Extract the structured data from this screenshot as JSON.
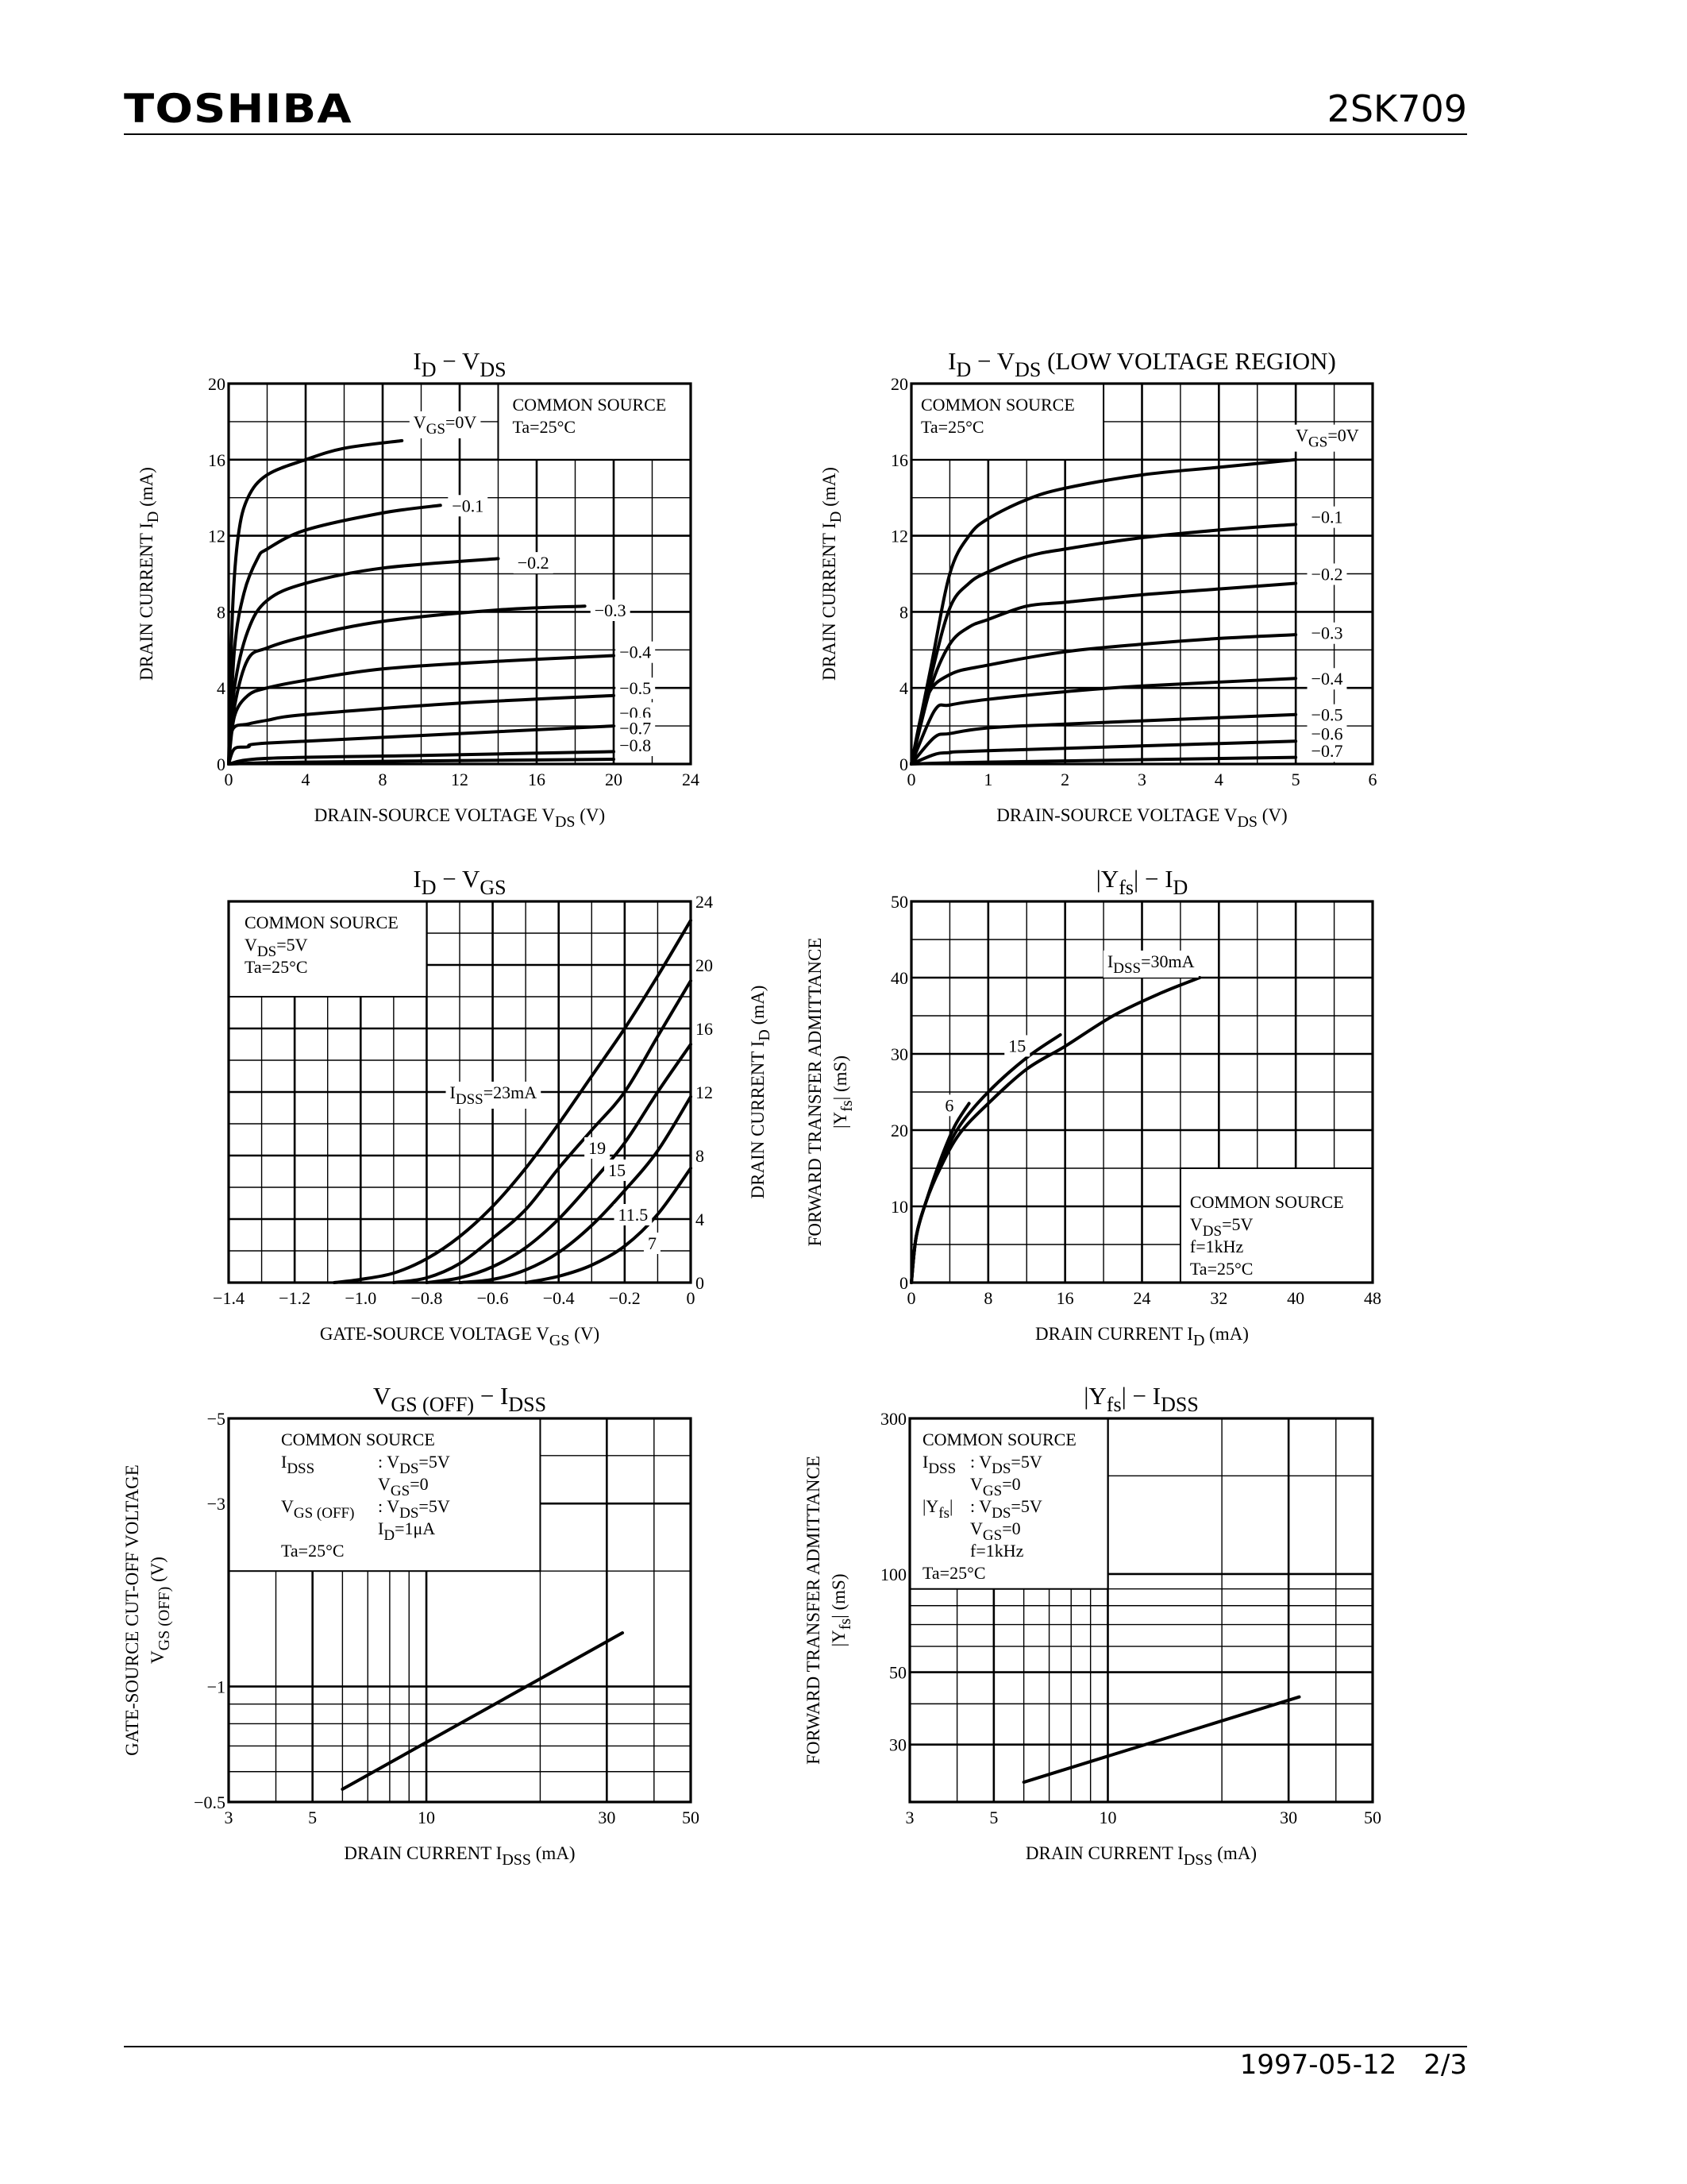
{
  "header": {
    "brand": "TOSHIBA",
    "part_number": "2SK709"
  },
  "footer": {
    "date": "1997-05-12",
    "page": "2/3"
  },
  "chart_data": [
    {
      "type": "line",
      "title": "I_{D}  −  V_{DS}",
      "xlabel": "DRAIN-SOURCE VOLTAGE   V_{DS}   (V)",
      "ylabel": [
        "DRAIN CURRENT   I_{D}   (mA)"
      ],
      "xscale": "linear",
      "yscale": "linear",
      "xlim": [
        0,
        24
      ],
      "ylim": [
        0,
        20
      ],
      "xticks": [
        "0",
        "4",
        "8",
        "12",
        "16",
        "20",
        "24"
      ],
      "yticks": [
        "0",
        "4",
        "8",
        "12",
        "16",
        "20"
      ],
      "grid": true,
      "conditions": [
        [
          "COMMON SOURCE"
        ],
        [
          "Ta=25°C"
        ]
      ],
      "series": [
        {
          "name": "V_{GS}=0V",
          "points": [
            [
              0,
              0
            ],
            [
              0.2,
              8
            ],
            [
              0.5,
              12
            ],
            [
              1,
              14
            ],
            [
              2,
              15.2
            ],
            [
              4,
              16
            ],
            [
              6,
              16.6
            ],
            [
              9,
              17
            ]
          ]
        },
        {
          "name": "−0.1",
          "points": [
            [
              0,
              0
            ],
            [
              0.3,
              6
            ],
            [
              0.8,
              9
            ],
            [
              1.5,
              10.8
            ],
            [
              2,
              11.3
            ],
            [
              4,
              12.3
            ],
            [
              8,
              13.2
            ],
            [
              11,
              13.6
            ]
          ]
        },
        {
          "name": "−0.2",
          "points": [
            [
              0,
              0
            ],
            [
              0.3,
              4
            ],
            [
              1,
              7
            ],
            [
              2,
              8.6
            ],
            [
              4,
              9.5
            ],
            [
              8,
              10.3
            ],
            [
              14,
              10.8
            ]
          ]
        },
        {
          "name": "−0.3",
          "points": [
            [
              0,
              0
            ],
            [
              0.3,
              3
            ],
            [
              1,
              5.5
            ],
            [
              2,
              6.1
            ],
            [
              4,
              6.7
            ],
            [
              8,
              7.5
            ],
            [
              14,
              8.1
            ],
            [
              18.5,
              8.3
            ]
          ]
        },
        {
          "name": "−0.4",
          "points": [
            [
              0,
              0
            ],
            [
              0.3,
              2.5
            ],
            [
              1,
              3.6
            ],
            [
              2,
              4
            ],
            [
              4,
              4.4
            ],
            [
              8,
              5
            ],
            [
              14,
              5.4
            ],
            [
              20,
              5.7
            ]
          ]
        },
        {
          "name": "−0.5",
          "points": [
            [
              0,
              0
            ],
            [
              0.2,
              1.8
            ],
            [
              1,
              2.1
            ],
            [
              2,
              2.3
            ],
            [
              4,
              2.6
            ],
            [
              12,
              3.2
            ],
            [
              20,
              3.6
            ]
          ]
        },
        {
          "name": "−0.6",
          "points": [
            [
              0,
              0
            ],
            [
              0.3,
              0.8
            ],
            [
              1,
              0.9
            ],
            [
              2,
              1.1
            ],
            [
              10,
              1.5
            ],
            [
              20,
              2
            ]
          ]
        },
        {
          "name": "−0.7",
          "points": [
            [
              0,
              0
            ],
            [
              2,
              0.3
            ],
            [
              10,
              0.45
            ],
            [
              20,
              0.65
            ]
          ]
        },
        {
          "name": "−0.8",
          "points": [
            [
              0,
              0
            ],
            [
              4,
              0.1
            ],
            [
              20,
              0.25
            ]
          ]
        }
      ]
    },
    {
      "type": "line",
      "title": "I_{D}  −  V_{DS}  (LOW VOLTAGE REGION)",
      "xlabel": "DRAIN-SOURCE VOLTAGE   V_{DS}   (V)",
      "ylabel": [
        "DRAIN CURRENT   I_{D}   (mA)"
      ],
      "xscale": "linear",
      "yscale": "linear",
      "xlim": [
        0,
        6
      ],
      "ylim": [
        0,
        20
      ],
      "xticks": [
        "0",
        "1",
        "2",
        "3",
        "4",
        "5",
        "6"
      ],
      "yticks": [
        "0",
        "4",
        "8",
        "12",
        "16",
        "20"
      ],
      "grid": true,
      "conditions": [
        [
          "COMMON SOURCE"
        ],
        [
          "Ta=25°C"
        ]
      ],
      "series": [
        {
          "name": "V_{GS}=0V",
          "points": [
            [
              0,
              0
            ],
            [
              0.25,
              5
            ],
            [
              0.5,
              10
            ],
            [
              0.75,
              12
            ],
            [
              1,
              12.9
            ],
            [
              1.5,
              13.9
            ],
            [
              2,
              14.5
            ],
            [
              3,
              15.2
            ],
            [
              4,
              15.6
            ],
            [
              5,
              16
            ]
          ]
        },
        {
          "name": "−0.1",
          "points": [
            [
              0,
              0
            ],
            [
              0.25,
              4.5
            ],
            [
              0.5,
              8.2
            ],
            [
              0.75,
              9.5
            ],
            [
              1,
              10.1
            ],
            [
              1.5,
              10.9
            ],
            [
              2,
              11.3
            ],
            [
              3,
              11.9
            ],
            [
              4,
              12.3
            ],
            [
              5,
              12.6
            ]
          ]
        },
        {
          "name": "−0.2",
          "points": [
            [
              0,
              0
            ],
            [
              0.25,
              4
            ],
            [
              0.5,
              6.3
            ],
            [
              0.75,
              7.2
            ],
            [
              1,
              7.6
            ],
            [
              1.5,
              8.3
            ],
            [
              2,
              8.5
            ],
            [
              3,
              8.9
            ],
            [
              4,
              9.2
            ],
            [
              5,
              9.5
            ]
          ]
        },
        {
          "name": "−0.3",
          "points": [
            [
              0,
              0
            ],
            [
              0.2,
              3.5
            ],
            [
              0.5,
              4.7
            ],
            [
              1,
              5.2
            ],
            [
              2,
              5.9
            ],
            [
              3,
              6.3
            ],
            [
              4,
              6.6
            ],
            [
              5,
              6.8
            ]
          ]
        },
        {
          "name": "−0.4",
          "points": [
            [
              0,
              0
            ],
            [
              0.3,
              2.8
            ],
            [
              0.5,
              3.1
            ],
            [
              1,
              3.4
            ],
            [
              2,
              3.8
            ],
            [
              3,
              4.1
            ],
            [
              5,
              4.5
            ]
          ]
        },
        {
          "name": "−0.5",
          "points": [
            [
              0,
              0
            ],
            [
              0.3,
              1.4
            ],
            [
              0.5,
              1.6
            ],
            [
              1,
              1.9
            ],
            [
              2,
              2.1
            ],
            [
              5,
              2.6
            ]
          ]
        },
        {
          "name": "−0.6",
          "points": [
            [
              0,
              0
            ],
            [
              0.3,
              0.5
            ],
            [
              0.5,
              0.6
            ],
            [
              1,
              0.7
            ],
            [
              5,
              1.2
            ]
          ]
        },
        {
          "name": "−0.7",
          "points": [
            [
              0,
              0
            ],
            [
              1,
              0.1
            ],
            [
              5,
              0.35
            ]
          ]
        }
      ]
    },
    {
      "type": "line",
      "title": "I_{D}  −  V_{GS}",
      "xlabel": "GATE-SOURCE VOLTAGE   V_{GS}   (V)",
      "ylabel": [
        "DRAIN CURRENT   I_{D}   (mA)"
      ],
      "xscale": "linear",
      "yscale": "linear",
      "xlim": [
        -1.4,
        0
      ],
      "ylim": [
        0,
        24
      ],
      "xticks": [
        "−1.4",
        "−1.2",
        "−1.0",
        "−0.8",
        "−0.6",
        "−0.4",
        "−0.2",
        "0"
      ],
      "yticks": [
        "0",
        "4",
        "8",
        "12",
        "16",
        "20",
        "24"
      ],
      "grid": true,
      "conditions": [
        [
          "COMMON SOURCE"
        ],
        [
          "V_{DS}=5V"
        ],
        [
          "Ta=25°C"
        ]
      ],
      "series": [
        {
          "name": "I_{DSS}=23mA",
          "points": [
            [
              -1.08,
              0
            ],
            [
              -1,
              0.2
            ],
            [
              -0.9,
              0.6
            ],
            [
              -0.8,
              1.5
            ],
            [
              -0.7,
              2.9
            ],
            [
              -0.6,
              4.8
            ],
            [
              -0.5,
              7.2
            ],
            [
              -0.4,
              10
            ],
            [
              -0.3,
              13
            ],
            [
              -0.2,
              16
            ],
            [
              -0.1,
              19.3
            ],
            [
              0,
              22.8
            ]
          ]
        },
        {
          "name": "19",
          "points": [
            [
              -0.9,
              0
            ],
            [
              -0.8,
              0.3
            ],
            [
              -0.7,
              1.2
            ],
            [
              -0.6,
              2.8
            ],
            [
              -0.5,
              4.6
            ],
            [
              -0.4,
              7.2
            ],
            [
              -0.3,
              9.6
            ],
            [
              -0.2,
              12
            ],
            [
              -0.1,
              15.5
            ],
            [
              0,
              19
            ]
          ]
        },
        {
          "name": "15",
          "points": [
            [
              -0.8,
              0
            ],
            [
              -0.7,
              0.3
            ],
            [
              -0.6,
              1
            ],
            [
              -0.5,
              2.2
            ],
            [
              -0.4,
              4
            ],
            [
              -0.3,
              6.3
            ],
            [
              -0.2,
              8.8
            ],
            [
              -0.1,
              12
            ],
            [
              0,
              15
            ]
          ]
        },
        {
          "name": "11.5",
          "points": [
            [
              -0.7,
              0
            ],
            [
              -0.6,
              0.2
            ],
            [
              -0.5,
              0.8
            ],
            [
              -0.4,
              1.9
            ],
            [
              -0.3,
              3.6
            ],
            [
              -0.2,
              5.8
            ],
            [
              -0.1,
              8.3
            ],
            [
              0,
              11.7
            ]
          ]
        },
        {
          "name": "7",
          "points": [
            [
              -0.5,
              0
            ],
            [
              -0.4,
              0.4
            ],
            [
              -0.3,
              1.1
            ],
            [
              -0.2,
              2.3
            ],
            [
              -0.1,
              4.3
            ],
            [
              0,
              7.2
            ]
          ]
        }
      ]
    },
    {
      "type": "line",
      "title": "|Y_{fs}|  −  I_{D}",
      "xlabel": "DRAIN CURRENT   I_{D}   (mA)",
      "ylabel": [
        "FORWARD TRANSFER ADMITTANCE",
        "|Y_{fs}|   (mS)"
      ],
      "xscale": "linear",
      "yscale": "linear",
      "xlim": [
        0,
        48
      ],
      "ylim": [
        0,
        50
      ],
      "xticks": [
        "0",
        "8",
        "16",
        "24",
        "32",
        "40",
        "48"
      ],
      "yticks": [
        "0",
        "10",
        "20",
        "30",
        "40",
        "50"
      ],
      "grid": true,
      "conditions": [
        [
          "COMMON SOURCE"
        ],
        [
          "V_{DS}=5V"
        ],
        [
          "f=1kHz"
        ],
        [
          "Ta=25°C"
        ]
      ],
      "series": [
        {
          "name": "I_{DSS}=30mA",
          "points": [
            [
              0,
              0
            ],
            [
              0.5,
              6
            ],
            [
              1.5,
              10.5
            ],
            [
              3,
              15
            ],
            [
              5,
              19.5
            ],
            [
              8,
              23.5
            ],
            [
              12,
              28
            ],
            [
              16,
              31
            ],
            [
              21,
              35
            ],
            [
              26,
              38
            ],
            [
              30,
              40
            ]
          ]
        },
        {
          "name": "15",
          "points": [
            [
              0,
              0
            ],
            [
              0.5,
              6
            ],
            [
              1.5,
              10.5
            ],
            [
              3,
              15.5
            ],
            [
              5,
              20.5
            ],
            [
              8,
              25
            ],
            [
              12,
              29.5
            ],
            [
              15.5,
              32.5
            ]
          ]
        },
        {
          "name": "6",
          "points": [
            [
              0,
              0
            ],
            [
              0.5,
              6
            ],
            [
              1.5,
              10.5
            ],
            [
              3,
              16
            ],
            [
              4.5,
              20.5
            ],
            [
              6,
              23.5
            ]
          ]
        }
      ]
    },
    {
      "type": "line",
      "title": "V_{GS (OFF)}  −  I_{DSS}",
      "xlabel": "DRAIN CURRENT   I_{DSS}   (mA)",
      "ylabel": [
        "GATE-SOURCE CUT-OFF VOLTAGE",
        "V_{GS (OFF)}   (V)"
      ],
      "xscale": "log",
      "yscale": "log",
      "xlim": [
        3,
        50
      ],
      "ylim": [
        -0.5,
        -5
      ],
      "xticks": [
        "3",
        "5",
        "10",
        "30",
        "50"
      ],
      "yticks": [
        "−0.5",
        "−1",
        "−3",
        "−5"
      ],
      "grid": true,
      "conditions": [
        [
          "COMMON SOURCE"
        ],
        [
          "I_{DSS}",
          ": V_{DS}=5V"
        ],
        [
          "",
          "  V_{GS}=0"
        ],
        [
          "V_{GS (OFF)}",
          ": V_{DS}=5V"
        ],
        [
          "",
          "  I_{D}=1μA"
        ],
        [
          "Ta=25°C"
        ]
      ],
      "series": [
        {
          "points": [
            [
              6,
              -0.54
            ],
            [
              33,
              -1.38
            ]
          ]
        }
      ]
    },
    {
      "type": "line",
      "title": "|Y_{fs}|  −  I_{DSS}",
      "xlabel": "DRAIN CURRENT   I_{DSS}   (mA)",
      "ylabel": [
        "FORWARD TRANSFER ADMITTANCE",
        "|Y_{fs}|   (mS)"
      ],
      "xscale": "log",
      "yscale": "log",
      "xlim": [
        3,
        50
      ],
      "ylim": [
        20,
        300
      ],
      "xticks": [
        "3",
        "5",
        "10",
        "30",
        "50"
      ],
      "yticks": [
        "30",
        "50",
        "100",
        "300"
      ],
      "grid": true,
      "conditions": [
        [
          "COMMON SOURCE"
        ],
        [
          "I_{DSS}",
          ": V_{DS}=5V"
        ],
        [
          "",
          "  V_{GS}=0"
        ],
        [
          "|Y_{fs}|",
          ": V_{DS}=5V"
        ],
        [
          "",
          "  V_{GS}=0"
        ],
        [
          "",
          "  f=1kHz"
        ],
        [
          "Ta=25°C"
        ]
      ],
      "series": [
        {
          "points": [
            [
              6,
              23
            ],
            [
              32,
              42
            ]
          ]
        }
      ]
    }
  ]
}
